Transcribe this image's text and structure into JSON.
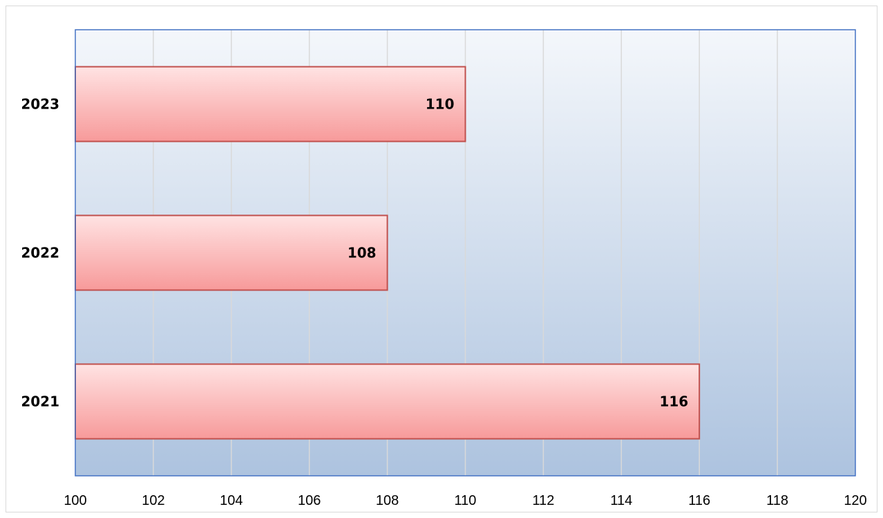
{
  "chart_data": {
    "type": "bar",
    "orientation": "horizontal",
    "categories": [
      "2021",
      "2022",
      "2023"
    ],
    "values": [
      116,
      108,
      110
    ],
    "data_labels": [
      "116",
      "108",
      "110"
    ],
    "title": "",
    "xlabel": "",
    "ylabel": "",
    "xlim": [
      100,
      120
    ],
    "x_ticks": [
      "100",
      "102",
      "104",
      "106",
      "108",
      "110",
      "112",
      "114",
      "116",
      "118",
      "120"
    ],
    "grid": "vertical",
    "legend": "none",
    "colors": {
      "bar_fill_top": "#ffe3e3",
      "bar_fill_bottom": "#f79a9a",
      "bar_border": "#c0504d",
      "plot_bg_top": "#f4f7fb",
      "plot_bg_bottom": "#adc3df",
      "plot_border": "#4472c4",
      "gridline": "#d9d9d9"
    }
  }
}
